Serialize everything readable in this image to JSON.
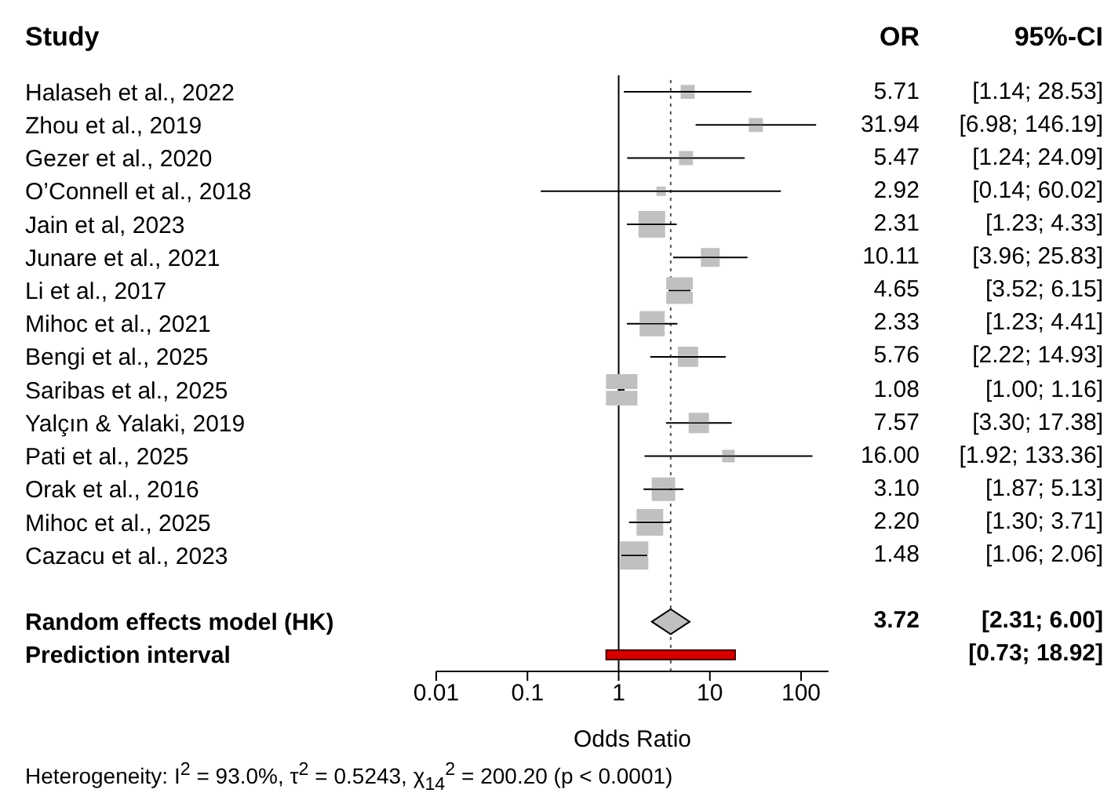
{
  "chart_data": [
    {
      "type": "bubble",
      "orientation": "horizontal",
      "log": "x",
      "xlabel": "Odds Ratio",
      "xlim": [
        0.01,
        200
      ],
      "xticks": [
        0.01,
        0.1,
        1,
        10,
        100
      ],
      "annotations": [
        "Study",
        "Heterogeneity: I$^{2}$ = 93.0%, τ$^{2}$ = 0.5243, χ$_{14}$$^{2}$ = 200.20 (p < 0.0001)"
      ],
      "categories": [
        "Halaseh et al., 2022",
        "Zhou et al., 2019",
        "Gezer et al., 2020",
        "O’Connell et al., 2018",
        "Jain et al, 2023",
        "Junare et al., 2021",
        "Li et al., 2017",
        "Mihoc et al., 2021",
        "Bengi et al., 2025",
        "Saribas et al., 2025",
        "Yalçın & Yalaki, 2019",
        "Pati et al., 2025",
        "Orak et al., 2016",
        "Mihoc et al., 2025",
        "Cazacu et al., 2023",
        null,
        "Random effects model (HK)",
        "Prediction interval"
      ],
      "ref_lines": [
        {
          "axis": "x",
          "value": 1,
          "line_style": "solid",
          "color": "#000000"
        },
        {
          "axis": "x",
          "value": 3.72,
          "line_style": "dotted",
          "color": "#555555"
        }
      ],
      "series": [
        {
          "marker": "square",
          "color": "#c0c0c0",
          "values": [
            5.71,
            31.94,
            5.47,
            2.92,
            2.31,
            10.11,
            4.65,
            2.33,
            5.76,
            1.08,
            7.57,
            16.0,
            3.1,
            2.2,
            1.48,
            null,
            null,
            null
          ],
          "errors": [
            [
              1.14,
              28.53
            ],
            [
              6.98,
              146.19
            ],
            [
              1.24,
              24.09
            ],
            [
              0.14,
              60.02
            ],
            [
              1.23,
              4.33
            ],
            [
              3.96,
              25.83
            ],
            [
              3.52,
              6.15
            ],
            [
              1.23,
              4.41
            ],
            [
              2.22,
              14.93
            ],
            [
              1.0,
              1.16
            ],
            [
              3.3,
              17.38
            ],
            [
              1.92,
              133.36
            ],
            [
              1.87,
              5.13
            ],
            [
              1.3,
              3.71
            ],
            [
              1.06,
              2.06
            ],
            null,
            null,
            null
          ],
          "sizes": [
            0.2,
            0.2,
            0.2,
            0.09,
            0.72,
            0.36,
            0.72,
            0.64,
            0.42,
            1,
            0.42,
            0.16,
            0.56,
            0.72,
            0.81,
            null,
            null,
            null
          ]
        },
        {
          "type": "scatter",
          "marker": "diamond",
          "color": "#c0c0c0",
          "values": [
            null,
            null,
            null,
            null,
            null,
            null,
            null,
            null,
            null,
            null,
            null,
            null,
            null,
            null,
            null,
            null,
            3.72,
            null
          ],
          "errors": [
            null,
            null,
            null,
            null,
            null,
            null,
            null,
            null,
            null,
            null,
            null,
            null,
            null,
            null,
            null,
            null,
            [
              2.31,
              6.0
            ],
            null
          ]
        },
        {
          "type": "bar",
          "color": "#d40000",
          "values": [
            null,
            null,
            null,
            null,
            null,
            null,
            null,
            null,
            null,
            null,
            null,
            null,
            null,
            null,
            null,
            null,
            null,
            18.19
          ],
          "base": [
            null,
            null,
            null,
            null,
            null,
            null,
            null,
            null,
            null,
            null,
            null,
            null,
            null,
            null,
            null,
            null,
            null,
            0.73
          ]
        }
      ]
    },
    {
      "type": "other",
      "annotations": [
        "OR",
        "95%-CI",
        "5.71",
        "[1.14; 28.53]",
        "31.94",
        "[6.98; 146.19]",
        "5.47",
        "[1.24; 24.09]",
        "2.92",
        "[0.14; 60.02]",
        "2.31",
        "[1.23; 4.33]",
        "10.11",
        "[3.96; 25.83]",
        "4.65",
        "[3.52; 6.15]",
        "2.33",
        "[1.23; 4.41]",
        "5.76",
        "[2.22; 14.93]",
        "1.08",
        "[1.00; 1.16]",
        "7.57",
        "[3.30; 17.38]",
        "16.00",
        "[1.92; 133.36]",
        "3.10",
        "[1.87; 5.13]",
        "2.20",
        "[1.30; 3.71]",
        "1.48",
        "[1.06; 2.06]",
        "3.72",
        "[2.31; 6.00]",
        "[0.73; 18.92]"
      ]
    }
  ]
}
